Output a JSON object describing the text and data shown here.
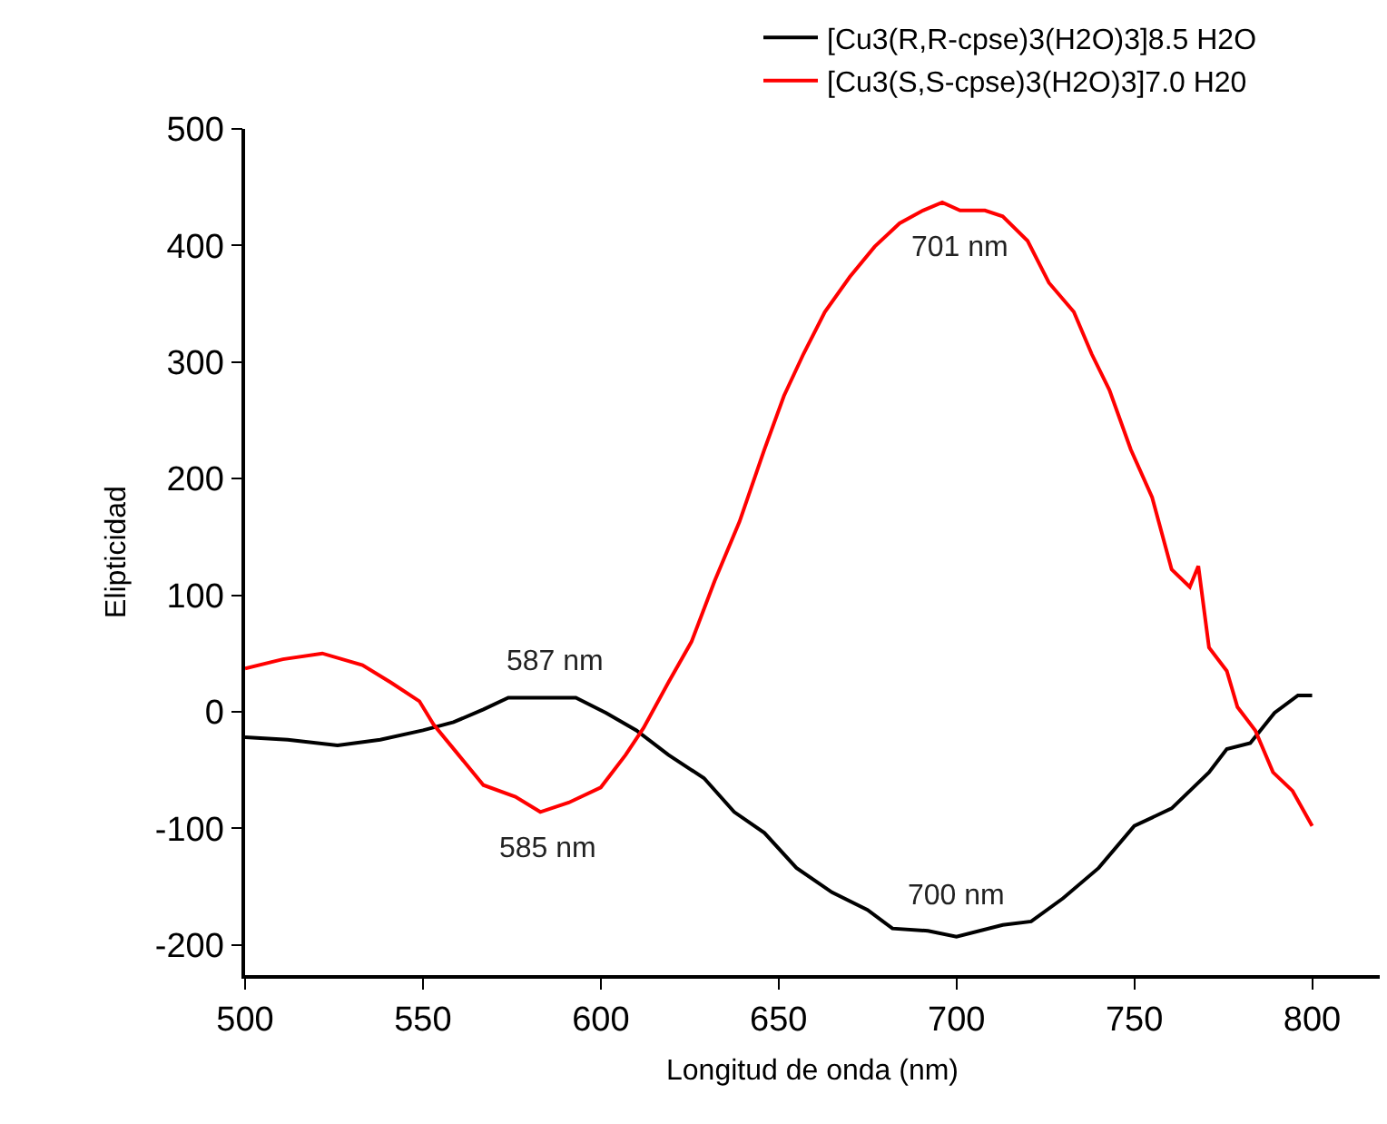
{
  "chart_data": {
    "type": "line",
    "xlabel": "Longitud de onda (nm)",
    "ylabel": "Elipticidad",
    "xlim": [
      500,
      819
    ],
    "ylim": [
      -226,
      500
    ],
    "xticks": [
      500,
      550,
      600,
      650,
      700,
      750,
      800
    ],
    "yticks": [
      -200,
      -100,
      0,
      100,
      200,
      300,
      400,
      500
    ],
    "grid": false,
    "legend": "top right",
    "marker": "none",
    "line_style": "solid",
    "series": [
      {
        "name": "[Cu3(R,R-cpse)3(H2O)3]8.5 H2O",
        "color": "#000000",
        "x": [
          500,
          512,
          526,
          538,
          550,
          558.6,
          567,
          574,
          584.5,
          593,
          601.5,
          610,
          619,
          629,
          637.5,
          646,
          655,
          665,
          675,
          682,
          692,
          700,
          713,
          721,
          730,
          740,
          750,
          760.5,
          771,
          776,
          782.6,
          789.4,
          796,
          800
        ],
        "values": [
          -22,
          -24,
          -29,
          -24,
          -16,
          -9,
          2,
          12,
          12,
          12,
          -1,
          -16,
          -37,
          -57,
          -86,
          -104,
          -134,
          -155,
          -170,
          -186,
          -188,
          -193,
          -183,
          -180,
          -160,
          -134,
          -98,
          -83,
          -52,
          -32,
          -27,
          -1,
          14,
          14
        ]
      },
      {
        "name": "[Cu3(S,S-cpse)3(H2O)3]7.0 H20",
        "color": "#ff0000",
        "x": [
          500,
          510.6,
          521.7,
          533,
          541,
          549,
          553,
          560,
          567,
          576,
          583,
          591,
          600,
          607,
          612,
          619,
          625.5,
          632,
          639,
          646,
          651.5,
          657,
          663,
          670,
          677,
          684,
          690.6,
          696,
          701,
          708,
          713,
          720,
          726,
          733,
          738,
          743,
          749,
          755,
          760.5,
          765.6,
          768,
          771,
          776,
          779,
          784,
          789,
          794.5,
          800
        ],
        "values": [
          37,
          45,
          50,
          40,
          25,
          9,
          -11,
          -37,
          -63,
          -73,
          -86,
          -78,
          -65,
          -37,
          -14,
          25,
          60,
          112,
          163,
          225,
          271,
          307,
          343,
          373,
          399,
          419,
          430,
          437,
          430,
          430,
          425,
          404,
          368,
          343,
          307,
          276,
          225,
          184,
          122,
          107,
          125,
          55,
          35,
          4,
          -16,
          -52,
          -68,
          -98
        ]
      }
    ],
    "annotations": [
      {
        "text": "587 nm",
        "x": 587,
        "y": 12
      },
      {
        "text": "585 nm",
        "x": 585,
        "y": -86
      },
      {
        "text": "701 nm",
        "x": 701,
        "y": 437
      },
      {
        "text": "700 nm",
        "x": 700,
        "y": -193
      }
    ]
  }
}
